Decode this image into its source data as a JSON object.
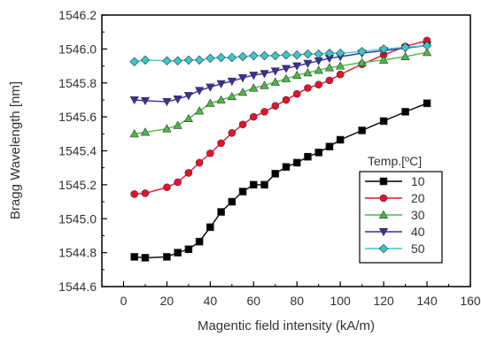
{
  "chart_data": {
    "type": "line",
    "title": "",
    "xlabel": "Magentic field intensity (kA/m)",
    "ylabel": "Bragg Wavelength [nm]",
    "xlim": [
      -10,
      160
    ],
    "ylim": [
      1544.6,
      1546.2
    ],
    "xticks": [
      0,
      20,
      40,
      60,
      80,
      100,
      120,
      140,
      160
    ],
    "yticks": [
      1544.6,
      1544.8,
      1545.0,
      1545.2,
      1545.4,
      1545.6,
      1545.8,
      1546.0,
      1546.2
    ],
    "xtick_labels": [
      "0",
      "20",
      "40",
      "60",
      "80",
      "100",
      "120",
      "140",
      "160"
    ],
    "ytick_labels": [
      "1544.6",
      "1544.8",
      "1545.0",
      "1545.2",
      "1545.4",
      "1545.6",
      "1545.8",
      "1546.0",
      "1546.2"
    ],
    "grid": false,
    "legend": {
      "title": "Temp.[ºC]",
      "position": "right"
    },
    "series": [
      {
        "name": "10",
        "color": "#000000",
        "marker": "square",
        "x": [
          5,
          10,
          20,
          25,
          30,
          35,
          40,
          45,
          50,
          55,
          60,
          65,
          70,
          75,
          80,
          85,
          90,
          95,
          100,
          110,
          120,
          130,
          140
        ],
        "y": [
          1544.775,
          1544.77,
          1544.775,
          1544.8,
          1544.82,
          1544.865,
          1544.95,
          1545.04,
          1545.1,
          1545.16,
          1545.2,
          1545.2,
          1545.265,
          1545.305,
          1545.33,
          1545.365,
          1545.39,
          1545.425,
          1545.465,
          1545.52,
          1545.575,
          1545.63,
          1545.68
        ]
      },
      {
        "name": "20",
        "color": "#e8112d",
        "marker": "circle",
        "x": [
          5,
          10,
          20,
          25,
          30,
          35,
          40,
          45,
          50,
          55,
          60,
          65,
          70,
          75,
          80,
          85,
          90,
          95,
          100,
          110,
          120,
          130,
          140
        ],
        "y": [
          1545.145,
          1545.15,
          1545.185,
          1545.215,
          1545.27,
          1545.33,
          1545.385,
          1545.445,
          1545.505,
          1545.555,
          1545.6,
          1545.63,
          1545.665,
          1545.7,
          1545.735,
          1545.77,
          1545.79,
          1545.815,
          1545.85,
          1545.91,
          1545.965,
          1546.015,
          1546.05
        ]
      },
      {
        "name": "30",
        "color": "#4cb848",
        "marker": "triangle-up",
        "x": [
          5,
          10,
          20,
          25,
          30,
          35,
          40,
          45,
          50,
          55,
          60,
          65,
          70,
          75,
          80,
          85,
          90,
          95,
          100,
          110,
          120,
          130,
          140
        ],
        "y": [
          1545.5,
          1545.51,
          1545.53,
          1545.55,
          1545.59,
          1545.635,
          1545.68,
          1545.7,
          1545.72,
          1545.745,
          1545.77,
          1545.785,
          1545.805,
          1545.825,
          1545.845,
          1545.86,
          1545.875,
          1545.89,
          1545.9,
          1545.92,
          1545.935,
          1545.955,
          1545.98
        ]
      },
      {
        "name": "40",
        "color": "#3c2e9e",
        "marker": "triangle-down",
        "x": [
          5,
          10,
          20,
          25,
          30,
          35,
          40,
          45,
          50,
          55,
          60,
          65,
          70,
          75,
          80,
          85,
          90,
          95,
          100,
          110,
          120,
          130,
          140
        ],
        "y": [
          1545.7,
          1545.695,
          1545.69,
          1545.705,
          1545.725,
          1545.755,
          1545.775,
          1545.795,
          1545.81,
          1545.83,
          1545.845,
          1545.855,
          1545.87,
          1545.885,
          1545.9,
          1545.915,
          1545.93,
          1545.945,
          1545.955,
          1545.975,
          1545.99,
          1546.005,
          1546.02
        ]
      },
      {
        "name": "50",
        "color": "#35c8cc",
        "marker": "diamond",
        "x": [
          5,
          10,
          20,
          25,
          30,
          35,
          40,
          45,
          50,
          55,
          60,
          65,
          70,
          75,
          80,
          85,
          90,
          95,
          100,
          110,
          120,
          130,
          140
        ],
        "y": [
          1545.925,
          1545.935,
          1545.93,
          1545.93,
          1545.935,
          1545.935,
          1545.945,
          1545.95,
          1545.95,
          1545.955,
          1545.96,
          1545.96,
          1545.96,
          1545.965,
          1545.965,
          1545.97,
          1545.97,
          1545.975,
          1545.975,
          1545.985,
          1546.0,
          1546.01,
          1546.02
        ]
      }
    ]
  }
}
